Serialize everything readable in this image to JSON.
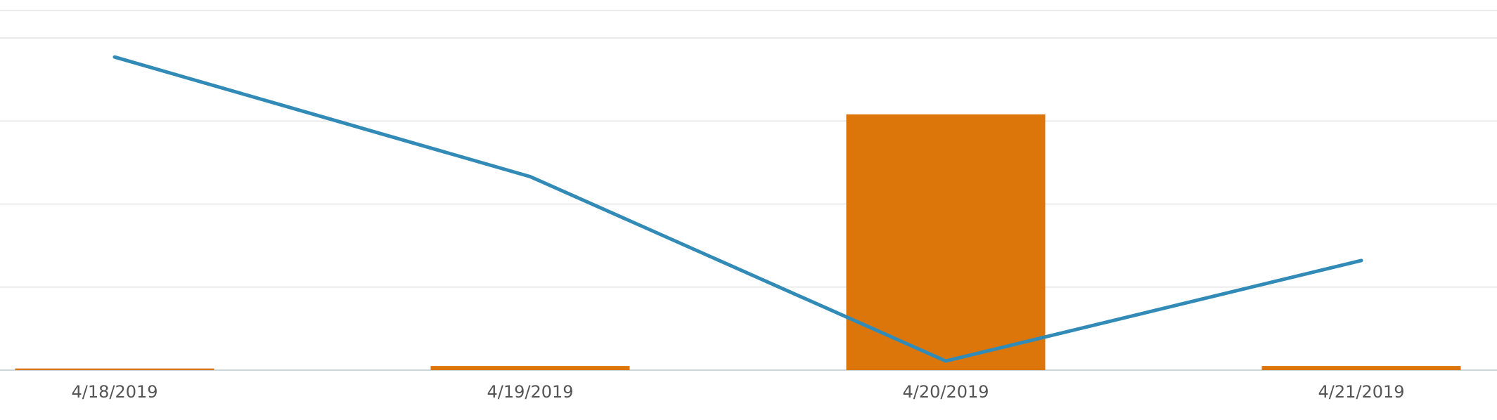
{
  "chart_data": {
    "type": "bar-line",
    "categories": [
      "4/18/2019",
      "4/19/2019",
      "4/20/2019",
      "4/21/2019"
    ],
    "series": [
      {
        "type": "bar",
        "color": "#dc760b",
        "values": [
          0.02,
          0.05,
          3.08,
          0.05
        ]
      },
      {
        "type": "line",
        "color": "#328bb7",
        "values": [
          3.77,
          2.33,
          0.11,
          1.32
        ]
      }
    ],
    "ylim": [
      0,
      4
    ],
    "yticks": [
      0,
      1,
      2,
      3,
      4
    ],
    "grid": true
  }
}
